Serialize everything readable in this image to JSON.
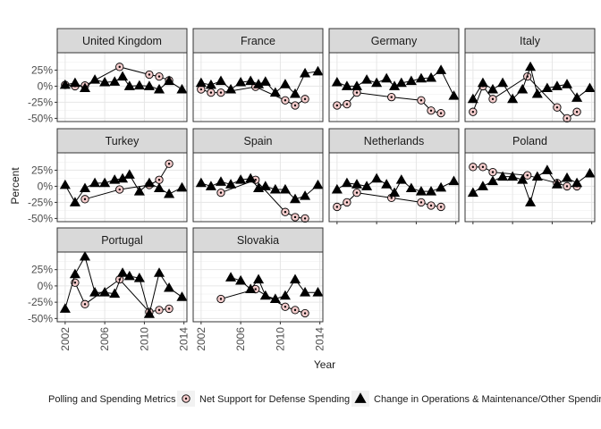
{
  "chart_data": {
    "type": "scatter",
    "layout": "facet-grid",
    "xlabel": "Year",
    "ylabel": "Percent",
    "xlim": [
      2001.2,
      2014.3
    ],
    "ylim": [
      -55,
      52
    ],
    "x_ticks": [
      2002,
      2006,
      2010,
      2014
    ],
    "y_ticks": [
      -50,
      -25,
      0,
      25
    ],
    "y_tick_labels": [
      "-50%",
      "-25%",
      "0%",
      "25%"
    ],
    "grid": true,
    "legend": {
      "title": "Polling and Spending Metrics",
      "position": "bottom",
      "entries": [
        {
          "key": "support",
          "label": "Net Support for Defense Spending",
          "marker": "circle-dot",
          "fill": "#f4cccc"
        },
        {
          "key": "om",
          "label": "Change in Operations & Maintenance/Other Spending",
          "marker": "triangle",
          "fill": "#000000"
        }
      ]
    },
    "facets": [
      {
        "name": "United Kingdom",
        "support": [
          [
            2002,
            2
          ],
          [
            2003,
            0
          ],
          [
            2004,
            1
          ],
          [
            2007.5,
            30
          ],
          [
            2010.5,
            18
          ],
          [
            2011.5,
            15
          ],
          [
            2012.5,
            9
          ]
        ],
        "om": [
          [
            2002,
            2
          ],
          [
            2003,
            5
          ],
          [
            2004,
            -3
          ],
          [
            2005,
            10
          ],
          [
            2006,
            6
          ],
          [
            2007,
            7
          ],
          [
            2007.8,
            15
          ],
          [
            2008.5,
            0
          ],
          [
            2009.5,
            1
          ],
          [
            2010.5,
            0
          ],
          [
            2011.5,
            -5
          ],
          [
            2012.5,
            8
          ],
          [
            2013.8,
            -5
          ]
        ]
      },
      {
        "name": "France",
        "support": [
          [
            2002,
            -5
          ],
          [
            2003,
            -10
          ],
          [
            2004,
            -10
          ],
          [
            2007.5,
            -1
          ],
          [
            2010.5,
            -22
          ],
          [
            2011.5,
            -30
          ],
          [
            2012.5,
            -20
          ]
        ],
        "om": [
          [
            2002,
            5
          ],
          [
            2003,
            2
          ],
          [
            2004,
            8
          ],
          [
            2005,
            -5
          ],
          [
            2006,
            6
          ],
          [
            2007,
            8
          ],
          [
            2007.8,
            3
          ],
          [
            2008.5,
            7
          ],
          [
            2009.5,
            -10
          ],
          [
            2010.5,
            3
          ],
          [
            2011.5,
            -12
          ],
          [
            2012.5,
            20
          ],
          [
            2013.8,
            23
          ]
        ]
      },
      {
        "name": "Germany",
        "support": [
          [
            2002,
            -30
          ],
          [
            2003,
            -28
          ],
          [
            2004,
            -10
          ],
          [
            2007.5,
            -17
          ],
          [
            2010.5,
            -22
          ],
          [
            2011.5,
            -38
          ],
          [
            2012.5,
            -42
          ]
        ],
        "om": [
          [
            2002,
            6
          ],
          [
            2003,
            0
          ],
          [
            2004,
            0
          ],
          [
            2005,
            10
          ],
          [
            2006,
            5
          ],
          [
            2007,
            12
          ],
          [
            2007.8,
            0
          ],
          [
            2008.5,
            5
          ],
          [
            2009.5,
            8
          ],
          [
            2010.5,
            12
          ],
          [
            2011.5,
            13
          ],
          [
            2012.5,
            25
          ],
          [
            2013.8,
            -15
          ]
        ]
      },
      {
        "name": "Italy",
        "support": [
          [
            2002,
            -40
          ],
          [
            2003,
            0
          ],
          [
            2004,
            -20
          ],
          [
            2007.5,
            15
          ],
          [
            2010.5,
            -33
          ],
          [
            2011.5,
            -50
          ],
          [
            2012.5,
            -40
          ]
        ],
        "om": [
          [
            2002,
            -20
          ],
          [
            2003,
            5
          ],
          [
            2004,
            -5
          ],
          [
            2005,
            5
          ],
          [
            2006,
            -20
          ],
          [
            2007,
            -5
          ],
          [
            2007.8,
            30
          ],
          [
            2008.5,
            -12
          ],
          [
            2009.5,
            -3
          ],
          [
            2010.5,
            0
          ],
          [
            2011.5,
            3
          ],
          [
            2012.5,
            -18
          ],
          [
            2013.8,
            -3
          ]
        ]
      },
      {
        "name": "Turkey",
        "support": [
          [
            2004,
            -20
          ],
          [
            2007.5,
            -5
          ],
          [
            2010.5,
            2
          ],
          [
            2011.5,
            10
          ],
          [
            2012.5,
            35
          ]
        ],
        "om": [
          [
            2002,
            2
          ],
          [
            2003,
            -25
          ],
          [
            2004,
            -3
          ],
          [
            2005,
            5
          ],
          [
            2006,
            5
          ],
          [
            2007,
            10
          ],
          [
            2007.8,
            12
          ],
          [
            2008.5,
            18
          ],
          [
            2009.5,
            -8
          ],
          [
            2010.5,
            5
          ],
          [
            2011.5,
            -3
          ],
          [
            2012.5,
            -12
          ],
          [
            2013.8,
            -2
          ]
        ]
      },
      {
        "name": "Spain",
        "support": [
          [
            2004,
            -10
          ],
          [
            2007.5,
            10
          ],
          [
            2010.5,
            -40
          ],
          [
            2011.5,
            -48
          ],
          [
            2012.5,
            -50
          ]
        ],
        "om": [
          [
            2002,
            5
          ],
          [
            2003,
            0
          ],
          [
            2004,
            7
          ],
          [
            2005,
            3
          ],
          [
            2006,
            10
          ],
          [
            2007,
            12
          ],
          [
            2007.8,
            -3
          ],
          [
            2008.5,
            0
          ],
          [
            2009.5,
            -5
          ],
          [
            2010.5,
            -5
          ],
          [
            2011.5,
            -20
          ],
          [
            2012.5,
            -15
          ],
          [
            2013.8,
            2
          ]
        ]
      },
      {
        "name": "Netherlands",
        "support": [
          [
            2002,
            -32
          ],
          [
            2003,
            -25
          ],
          [
            2004,
            -10
          ],
          [
            2007.5,
            -18
          ],
          [
            2010.5,
            -25
          ],
          [
            2011.5,
            -30
          ],
          [
            2012.5,
            -32
          ]
        ],
        "om": [
          [
            2002,
            -5
          ],
          [
            2003,
            5
          ],
          [
            2004,
            3
          ],
          [
            2005,
            0
          ],
          [
            2006,
            12
          ],
          [
            2007,
            3
          ],
          [
            2007.8,
            -10
          ],
          [
            2008.5,
            10
          ],
          [
            2009.5,
            -3
          ],
          [
            2010.5,
            -8
          ],
          [
            2011.5,
            -8
          ],
          [
            2012.5,
            -2
          ],
          [
            2013.8,
            8
          ]
        ]
      },
      {
        "name": "Poland",
        "support": [
          [
            2002,
            30
          ],
          [
            2003,
            30
          ],
          [
            2004,
            22
          ],
          [
            2007.5,
            17
          ],
          [
            2010.5,
            5
          ],
          [
            2011.5,
            0
          ],
          [
            2012.5,
            0
          ]
        ],
        "om": [
          [
            2002,
            -10
          ],
          [
            2003,
            0
          ],
          [
            2004,
            8
          ],
          [
            2005,
            15
          ],
          [
            2006,
            15
          ],
          [
            2007,
            10
          ],
          [
            2007.8,
            -25
          ],
          [
            2008.5,
            15
          ],
          [
            2009.5,
            25
          ],
          [
            2010.5,
            3
          ],
          [
            2011.5,
            13
          ],
          [
            2012.5,
            5
          ],
          [
            2013.8,
            20
          ]
        ]
      },
      {
        "name": "Portugal",
        "support": [
          [
            2003,
            5
          ],
          [
            2004,
            -28
          ],
          [
            2007.5,
            10
          ],
          [
            2010.5,
            -40
          ],
          [
            2011.5,
            -37
          ],
          [
            2012.5,
            -35
          ]
        ],
        "om": [
          [
            2002,
            -35
          ],
          [
            2003,
            18
          ],
          [
            2004,
            45
          ],
          [
            2005,
            -10
          ],
          [
            2006,
            -10
          ],
          [
            2007,
            -12
          ],
          [
            2007.8,
            20
          ],
          [
            2008.5,
            15
          ],
          [
            2009.5,
            12
          ],
          [
            2010.5,
            -43
          ],
          [
            2011.5,
            20
          ],
          [
            2012.5,
            -3
          ],
          [
            2013.8,
            -17
          ]
        ]
      },
      {
        "name": "Slovakia",
        "support": [
          [
            2004,
            -20
          ],
          [
            2007.5,
            -5
          ],
          [
            2010.5,
            -32
          ],
          [
            2011.5,
            -37
          ],
          [
            2012.5,
            -42
          ]
        ],
        "om": [
          [
            2005,
            13
          ],
          [
            2006,
            8
          ],
          [
            2007,
            -5
          ],
          [
            2007.8,
            10
          ],
          [
            2008.5,
            -15
          ],
          [
            2009.5,
            -20
          ],
          [
            2010.5,
            -15
          ],
          [
            2011.5,
            10
          ],
          [
            2012.5,
            -10
          ],
          [
            2013.8,
            -10
          ]
        ]
      }
    ]
  }
}
